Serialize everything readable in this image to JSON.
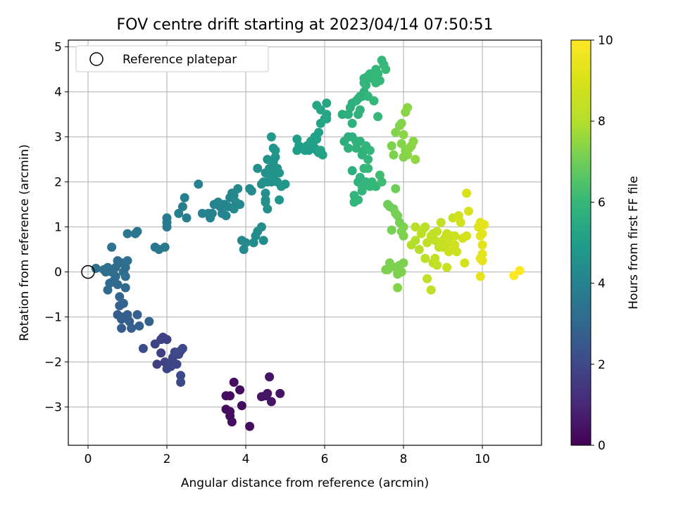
{
  "chart_data": {
    "type": "scatter",
    "title": "FOV centre drift starting at 2023/04/14 07:50:51",
    "xlabel": "Angular distance from reference (arcmin)",
    "ylabel": "Rotation from reference (arcmin)",
    "xlim": [
      -0.5,
      11.5
    ],
    "ylim": [
      -3.85,
      5.15
    ],
    "xticks": [
      0,
      2,
      4,
      6,
      8,
      10
    ],
    "yticks": [
      -3,
      -2,
      -1,
      0,
      1,
      2,
      3,
      4,
      5
    ],
    "grid": true,
    "legend": {
      "position": "top-left",
      "entries": [
        "Reference platepar"
      ]
    },
    "reference_point": {
      "name": "Reference platepar",
      "x": 0,
      "y": 0
    },
    "colorbar": {
      "label": "Hours from first FF file",
      "colormap": "viridis",
      "range": [
        0,
        10
      ],
      "ticks": [
        0,
        2,
        4,
        6,
        8,
        10
      ]
    },
    "points": [
      [
        3.5,
        -2.75,
        0.3
      ],
      [
        3.6,
        -2.75,
        0.3
      ],
      [
        3.7,
        -2.45,
        0.3
      ],
      [
        3.85,
        -2.62,
        0.3
      ],
      [
        3.9,
        -2.97,
        0.3
      ],
      [
        3.5,
        -3.05,
        0.3
      ],
      [
        3.6,
        -3.2,
        0.3
      ],
      [
        3.65,
        -3.33,
        0.3
      ],
      [
        3.6,
        -3.1,
        0.3
      ],
      [
        4.1,
        -3.43,
        0.3
      ],
      [
        4.4,
        -2.77,
        0.5
      ],
      [
        4.5,
        -2.75,
        0.5
      ],
      [
        4.6,
        -2.33,
        0.5
      ],
      [
        4.65,
        -2.88,
        0.5
      ],
      [
        4.87,
        -2.7,
        0.5
      ],
      [
        4.55,
        -2.7,
        0.5
      ],
      [
        1.75,
        -2.05,
        1.7
      ],
      [
        1.85,
        -1.8,
        1.7
      ],
      [
        1.85,
        -1.5,
        1.8
      ],
      [
        1.9,
        -1.45,
        1.8
      ],
      [
        2.0,
        -1.5,
        1.8
      ],
      [
        1.95,
        -2.0,
        1.8
      ],
      [
        2.0,
        -2.15,
        1.9
      ],
      [
        2.05,
        -2.05,
        1.9
      ],
      [
        2.1,
        -2.1,
        1.9
      ],
      [
        2.15,
        -1.9,
        1.9
      ],
      [
        2.2,
        -1.78,
        2.0
      ],
      [
        2.3,
        -1.83,
        2.0
      ],
      [
        2.35,
        -1.75,
        2.0
      ],
      [
        2.35,
        -2.3,
        2.0
      ],
      [
        2.35,
        -2.45,
        2.0
      ],
      [
        2.4,
        -1.7,
        2.0
      ],
      [
        1.7,
        -1.6,
        1.8
      ],
      [
        2.25,
        -2.05,
        1.9
      ],
      [
        1.4,
        -1.7,
        2.1
      ],
      [
        0.75,
        -0.95,
        2.6
      ],
      [
        0.85,
        -1.05,
        2.6
      ],
      [
        0.85,
        -1.25,
        2.6
      ],
      [
        0.9,
        -1.0,
        2.7
      ],
      [
        1.0,
        -0.95,
        2.7
      ],
      [
        1.05,
        -1.1,
        2.7
      ],
      [
        1.1,
        -1.25,
        2.7
      ],
      [
        1.25,
        -0.95,
        2.7
      ],
      [
        1.3,
        -1.2,
        2.7
      ],
      [
        1.55,
        -1.1,
        2.8
      ],
      [
        0.8,
        -0.75,
        2.8
      ],
      [
        0.8,
        -0.55,
        2.9
      ],
      [
        0.9,
        -0.7,
        2.9
      ],
      [
        0.95,
        -0.35,
        3.0
      ],
      [
        0.75,
        -0.28,
        3.0
      ],
      [
        0.5,
        -0.4,
        3.1
      ],
      [
        0.55,
        -0.25,
        3.1
      ],
      [
        0.65,
        -0.2,
        3.1
      ],
      [
        0.7,
        -0.1,
        3.2
      ],
      [
        0.6,
        0.0,
        3.2
      ],
      [
        0.7,
        0.1,
        3.2
      ],
      [
        0.75,
        0.25,
        3.2
      ],
      [
        0.85,
        0.2,
        3.2
      ],
      [
        0.9,
        0.0,
        3.2
      ],
      [
        0.95,
        0.1,
        3.2
      ],
      [
        0.95,
        -0.1,
        3.3
      ],
      [
        0.45,
        0.0,
        3.3
      ],
      [
        0.4,
        0.05,
        3.3
      ],
      [
        0.5,
        0.1,
        3.3
      ],
      [
        0.2,
        0.08,
        3.3
      ],
      [
        0.6,
        0.55,
        3.4
      ],
      [
        1.0,
        0.25,
        3.3
      ],
      [
        1.0,
        0.85,
        3.5
      ],
      [
        1.2,
        0.85,
        3.5
      ],
      [
        1.25,
        0.9,
        3.5
      ],
      [
        1.7,
        0.55,
        3.6
      ],
      [
        1.8,
        0.5,
        3.6
      ],
      [
        1.95,
        0.55,
        3.6
      ],
      [
        2.0,
        1.0,
        3.7
      ],
      [
        2.0,
        1.1,
        3.7
      ],
      [
        2.0,
        1.2,
        3.7
      ],
      [
        2.3,
        1.3,
        3.9
      ],
      [
        2.4,
        1.45,
        3.9
      ],
      [
        2.45,
        1.65,
        3.9
      ],
      [
        2.5,
        1.2,
        3.9
      ],
      [
        2.8,
        1.95,
        4.0
      ],
      [
        2.9,
        1.3,
        4.0
      ],
      [
        3.05,
        1.3,
        4.0
      ],
      [
        3.1,
        1.2,
        4.0
      ],
      [
        3.15,
        1.3,
        4.0
      ],
      [
        3.2,
        1.5,
        4.0
      ],
      [
        3.3,
        1.55,
        4.1
      ],
      [
        3.35,
        1.45,
        4.1
      ],
      [
        3.4,
        1.3,
        4.1
      ],
      [
        3.45,
        1.5,
        4.1
      ],
      [
        3.5,
        1.25,
        4.1
      ],
      [
        3.55,
        1.45,
        4.1
      ],
      [
        3.6,
        1.65,
        4.1
      ],
      [
        3.65,
        1.75,
        4.2
      ],
      [
        3.7,
        1.7,
        4.2
      ],
      [
        3.75,
        1.55,
        4.2
      ],
      [
        3.8,
        1.85,
        4.2
      ],
      [
        3.85,
        1.5,
        4.2
      ],
      [
        3.7,
        1.4,
        4.2
      ],
      [
        3.9,
        0.7,
        4.2
      ],
      [
        3.95,
        0.5,
        4.3
      ],
      [
        4.0,
        0.65,
        4.3
      ],
      [
        4.1,
        1.85,
        4.3
      ],
      [
        4.15,
        1.8,
        4.3
      ],
      [
        4.2,
        0.65,
        4.4
      ],
      [
        4.25,
        0.8,
        4.4
      ],
      [
        4.3,
        0.9,
        4.4
      ],
      [
        4.4,
        1.0,
        4.4
      ],
      [
        4.45,
        0.7,
        4.4
      ],
      [
        4.5,
        1.6,
        4.4
      ],
      [
        4.55,
        1.4,
        4.5
      ],
      [
        4.5,
        1.75,
        4.5
      ],
      [
        4.55,
        2.0,
        4.5
      ],
      [
        4.65,
        2.0,
        4.5
      ],
      [
        4.5,
        2.2,
        4.5
      ],
      [
        4.6,
        2.3,
        4.5
      ],
      [
        4.55,
        2.5,
        4.6
      ],
      [
        4.7,
        2.1,
        4.6
      ],
      [
        4.7,
        2.45,
        4.6
      ],
      [
        4.75,
        2.55,
        4.6
      ],
      [
        4.8,
        2.3,
        4.6
      ],
      [
        4.8,
        2.0,
        4.6
      ],
      [
        4.85,
        1.6,
        4.7
      ],
      [
        4.85,
        2.2,
        4.7
      ],
      [
        4.9,
        1.9,
        4.7
      ],
      [
        4.3,
        2.3,
        4.5
      ],
      [
        4.7,
        2.75,
        4.7
      ],
      [
        4.65,
        3.0,
        4.8
      ],
      [
        4.45,
        2.0,
        4.5
      ],
      [
        4.7,
        2.25,
        4.6
      ],
      [
        4.6,
        2.2,
        4.6
      ],
      [
        5.0,
        1.95,
        4.7
      ],
      [
        4.75,
        2.7,
        4.7
      ],
      [
        4.6,
        2.15,
        4.6
      ],
      [
        4.4,
        1.95,
        4.5
      ],
      [
        4.5,
        1.55,
        4.5
      ],
      [
        5.3,
        2.95,
        5.0
      ],
      [
        5.35,
        2.8,
        5.0
      ],
      [
        5.45,
        2.75,
        5.0
      ],
      [
        5.55,
        2.8,
        5.0
      ],
      [
        5.65,
        2.9,
        5.1
      ],
      [
        5.75,
        2.75,
        5.1
      ],
      [
        5.8,
        2.7,
        5.1
      ],
      [
        5.85,
        2.65,
        5.1
      ],
      [
        5.9,
        2.7,
        5.2
      ],
      [
        5.95,
        2.6,
        5.2
      ],
      [
        5.8,
        2.95,
        5.1
      ],
      [
        5.85,
        3.1,
        5.1
      ],
      [
        5.9,
        3.3,
        5.2
      ],
      [
        5.75,
        3.0,
        5.1
      ],
      [
        5.8,
        3.7,
        5.3
      ],
      [
        5.9,
        3.6,
        5.3
      ],
      [
        6.0,
        3.4,
        5.3
      ],
      [
        6.05,
        3.75,
        5.3
      ],
      [
        6.05,
        3.4,
        5.3
      ],
      [
        6.05,
        3.5,
        5.3
      ],
      [
        5.5,
        2.7,
        5.1
      ],
      [
        5.3,
        2.7,
        5.0
      ],
      [
        5.6,
        2.7,
        5.0
      ],
      [
        5.7,
        2.85,
        5.1
      ],
      [
        6.45,
        3.5,
        5.6
      ],
      [
        6.5,
        2.9,
        5.6
      ],
      [
        6.6,
        3.5,
        5.7
      ],
      [
        6.65,
        3.65,
        5.7
      ],
      [
        6.7,
        3.75,
        5.7
      ],
      [
        6.7,
        3.3,
        5.7
      ],
      [
        6.8,
        3.8,
        5.8
      ],
      [
        6.85,
        3.85,
        5.8
      ],
      [
        6.9,
        3.9,
        5.8
      ],
      [
        6.9,
        3.6,
        5.8
      ],
      [
        6.95,
        3.9,
        5.8
      ],
      [
        7.0,
        4.0,
        5.8
      ],
      [
        7.0,
        4.2,
        5.9
      ],
      [
        7.0,
        4.3,
        5.9
      ],
      [
        7.05,
        4.15,
        5.9
      ],
      [
        7.1,
        4.35,
        5.9
      ],
      [
        7.15,
        4.4,
        5.9
      ],
      [
        7.2,
        4.3,
        5.9
      ],
      [
        7.25,
        4.35,
        6.0
      ],
      [
        7.3,
        4.5,
        6.0
      ],
      [
        7.3,
        4.2,
        6.0
      ],
      [
        7.35,
        4.4,
        6.0
      ],
      [
        7.4,
        4.25,
        6.0
      ],
      [
        7.45,
        4.7,
        6.0
      ],
      [
        7.5,
        4.6,
        6.0
      ],
      [
        7.55,
        4.5,
        6.1
      ],
      [
        7.25,
        3.8,
        6.0
      ],
      [
        7.35,
        3.45,
        6.0
      ],
      [
        6.6,
        3.0,
        5.7
      ],
      [
        6.7,
        3.0,
        5.7
      ],
      [
        6.6,
        2.75,
        5.7
      ],
      [
        6.8,
        2.9,
        5.8
      ],
      [
        6.9,
        2.9,
        5.8
      ],
      [
        6.95,
        2.6,
        5.8
      ],
      [
        7.0,
        2.7,
        5.8
      ],
      [
        7.05,
        2.8,
        5.9
      ],
      [
        7.1,
        2.5,
        5.9
      ],
      [
        7.15,
        2.7,
        5.9
      ],
      [
        6.8,
        2.75,
        5.8
      ],
      [
        6.7,
        2.25,
        5.7
      ],
      [
        6.85,
        2.0,
        5.8
      ],
      [
        6.9,
        2.1,
        5.8
      ],
      [
        6.95,
        1.8,
        5.9
      ],
      [
        6.75,
        1.7,
        5.9
      ],
      [
        6.75,
        1.55,
        5.9
      ],
      [
        6.85,
        1.6,
        5.9
      ],
      [
        6.95,
        1.9,
        5.9
      ],
      [
        7.0,
        2.3,
        5.9
      ],
      [
        7.05,
        2.0,
        5.9
      ],
      [
        7.1,
        2.3,
        6.0
      ],
      [
        7.15,
        1.9,
        6.0
      ],
      [
        7.2,
        2.0,
        6.0
      ],
      [
        7.3,
        1.9,
        6.0
      ],
      [
        6.6,
        3.0,
        5.7
      ],
      [
        6.85,
        3.5,
        5.8
      ],
      [
        7.1,
        3.9,
        5.9
      ],
      [
        7.3,
        4.4,
        6.0
      ],
      [
        7.4,
        2.15,
        6.2
      ],
      [
        7.45,
        2.0,
        6.2
      ],
      [
        7.6,
        1.5,
        7.0
      ],
      [
        7.65,
        1.45,
        7.0
      ],
      [
        7.75,
        1.4,
        7.0
      ],
      [
        7.8,
        1.3,
        7.1
      ],
      [
        7.85,
        1.25,
        7.1
      ],
      [
        7.9,
        1.1,
        7.1
      ],
      [
        7.7,
        0.93,
        7.1
      ],
      [
        8.0,
        1.0,
        7.2
      ],
      [
        8.0,
        0.8,
        7.2
      ],
      [
        7.95,
        0.9,
        7.2
      ],
      [
        7.8,
        1.85,
        7.0
      ],
      [
        7.6,
        0.05,
        7.2
      ],
      [
        7.65,
        0.2,
        7.2
      ],
      [
        7.8,
        0.1,
        7.2
      ],
      [
        7.85,
        -0.05,
        7.2
      ],
      [
        7.9,
        0.15,
        7.2
      ],
      [
        7.95,
        0.0,
        7.2
      ],
      [
        7.55,
        0.05,
        7.2
      ],
      [
        7.85,
        -0.35,
        7.3
      ],
      [
        8.0,
        0.2,
        7.2
      ],
      [
        7.7,
        2.8,
        7.2
      ],
      [
        7.75,
        2.6,
        7.2
      ],
      [
        7.8,
        3.1,
        7.3
      ],
      [
        7.9,
        3.25,
        7.3
      ],
      [
        7.95,
        3.3,
        7.3
      ],
      [
        7.95,
        2.85,
        7.3
      ],
      [
        8.05,
        2.7,
        7.3
      ],
      [
        8.05,
        3.55,
        7.4
      ],
      [
        8.1,
        3.65,
        7.4
      ],
      [
        8.1,
        2.6,
        7.4
      ],
      [
        8.2,
        2.8,
        7.4
      ],
      [
        8.25,
        2.9,
        7.4
      ],
      [
        8.3,
        2.5,
        7.5
      ],
      [
        8.0,
        2.55,
        7.3
      ],
      [
        8.0,
        3.05,
        7.4
      ],
      [
        8.15,
        2.75,
        7.4
      ],
      [
        8.2,
        0.6,
        8.0
      ],
      [
        8.3,
        0.7,
        8.0
      ],
      [
        8.4,
        0.5,
        8.1
      ],
      [
        8.3,
        1.0,
        8.1
      ],
      [
        8.45,
        0.85,
        8.2
      ],
      [
        8.5,
        0.95,
        8.2
      ],
      [
        8.55,
        1.0,
        8.2
      ],
      [
        8.6,
        0.65,
        8.3
      ],
      [
        8.7,
        0.8,
        8.3
      ],
      [
        8.75,
        0.85,
        8.3
      ],
      [
        8.8,
        0.7,
        8.3
      ],
      [
        8.85,
        0.9,
        8.4
      ],
      [
        8.9,
        0.6,
        8.4
      ],
      [
        8.95,
        1.1,
        8.4
      ],
      [
        9.0,
        0.55,
        8.5
      ],
      [
        9.05,
        0.75,
        8.5
      ],
      [
        9.1,
        0.85,
        8.5
      ],
      [
        9.15,
        0.65,
        8.6
      ],
      [
        9.2,
        0.8,
        8.6
      ],
      [
        9.25,
        1.2,
        8.6
      ],
      [
        9.3,
        0.6,
        8.7
      ],
      [
        9.35,
        0.45,
        8.7
      ],
      [
        9.4,
        1.25,
        8.8
      ],
      [
        9.45,
        1.1,
        8.8
      ],
      [
        9.5,
        0.75,
        8.8
      ],
      [
        9.6,
        0.8,
        8.9
      ],
      [
        9.55,
        0.2,
        8.9
      ],
      [
        9.65,
        1.35,
        9.0
      ],
      [
        9.6,
        1.75,
        9.0
      ],
      [
        8.6,
        -0.15,
        8.3
      ],
      [
        8.7,
        -0.4,
        8.3
      ],
      [
        8.55,
        0.3,
        8.2
      ],
      [
        8.75,
        0.2,
        8.3
      ],
      [
        8.85,
        0.15,
        8.4
      ],
      [
        9.1,
        0.1,
        8.6
      ],
      [
        8.8,
        0.3,
        8.4
      ],
      [
        8.9,
        0.55,
        8.4
      ],
      [
        9.0,
        0.7,
        8.5
      ],
      [
        9.05,
        0.55,
        8.5
      ],
      [
        9.15,
        0.45,
        8.6
      ],
      [
        9.3,
        0.8,
        8.7
      ],
      [
        9.9,
        1.0,
        9.2
      ],
      [
        9.95,
        1.1,
        9.2
      ],
      [
        10.0,
        0.85,
        9.3
      ],
      [
        10.0,
        0.6,
        9.3
      ],
      [
        10.05,
        1.05,
        9.3
      ],
      [
        10.0,
        0.4,
        9.3
      ],
      [
        9.95,
        0.3,
        9.3
      ],
      [
        10.0,
        0.25,
        9.4
      ],
      [
        9.95,
        -0.1,
        9.4
      ],
      [
        9.95,
        0.8,
        9.3
      ],
      [
        10.8,
        -0.08,
        10.0
      ],
      [
        10.95,
        0.03,
        10.0
      ]
    ]
  }
}
